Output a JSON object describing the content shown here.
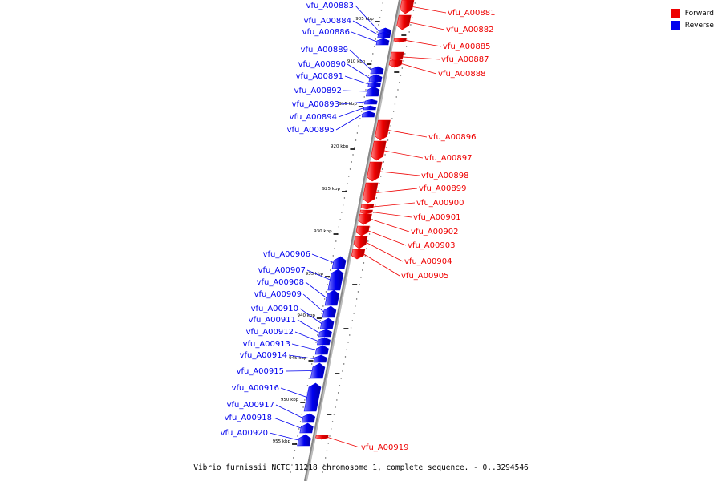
{
  "caption": "Vibrio furnissii NCTC 11218 chromosome 1, complete sequence. - 0..3294546",
  "legend": [
    {
      "label": "Forward",
      "color": "#ee0000"
    },
    {
      "label": "Reverse",
      "color": "#0000ee"
    }
  ],
  "colors": {
    "forward": "#ee0000",
    "reverse": "#0000ee",
    "backbone": "#888888"
  },
  "ticks": [
    "905 kbp",
    "910 kbp",
    "915 kbp",
    "920 kbp",
    "925 kbp",
    "930 kbp",
    "935 kbp",
    "940 kbp",
    "945 kbp",
    "950 kbp",
    "955 kbp"
  ],
  "genes": [
    {
      "name": "vfu_A00881",
      "strand": "forward"
    },
    {
      "name": "vfu_A00882",
      "strand": "forward"
    },
    {
      "name": "vfu_A00883",
      "strand": "reverse"
    },
    {
      "name": "vfu_A00884",
      "strand": "reverse"
    },
    {
      "name": "vfu_A00885",
      "strand": "forward"
    },
    {
      "name": "vfu_A00886",
      "strand": "reverse"
    },
    {
      "name": "vfu_A00887",
      "strand": "forward"
    },
    {
      "name": "vfu_A00888",
      "strand": "forward"
    },
    {
      "name": "vfu_A00889",
      "strand": "reverse"
    },
    {
      "name": "vfu_A00890",
      "strand": "reverse"
    },
    {
      "name": "vfu_A00891",
      "strand": "reverse"
    },
    {
      "name": "vfu_A00892",
      "strand": "reverse"
    },
    {
      "name": "vfu_A00893",
      "strand": "reverse"
    },
    {
      "name": "vfu_A00894",
      "strand": "reverse"
    },
    {
      "name": "vfu_A00895",
      "strand": "reverse"
    },
    {
      "name": "vfu_A00896",
      "strand": "forward"
    },
    {
      "name": "vfu_A00897",
      "strand": "forward"
    },
    {
      "name": "vfu_A00898",
      "strand": "forward"
    },
    {
      "name": "vfu_A00899",
      "strand": "forward"
    },
    {
      "name": "vfu_A00900",
      "strand": "forward"
    },
    {
      "name": "vfu_A00901",
      "strand": "forward"
    },
    {
      "name": "vfu_A00902",
      "strand": "forward"
    },
    {
      "name": "vfu_A00903",
      "strand": "forward"
    },
    {
      "name": "vfu_A00904",
      "strand": "forward"
    },
    {
      "name": "vfu_A00905",
      "strand": "forward"
    },
    {
      "name": "vfu_A00906",
      "strand": "reverse"
    },
    {
      "name": "vfu_A00907",
      "strand": "reverse"
    },
    {
      "name": "vfu_A00908",
      "strand": "reverse"
    },
    {
      "name": "vfu_A00909",
      "strand": "reverse"
    },
    {
      "name": "vfu_A00910",
      "strand": "reverse"
    },
    {
      "name": "vfu_A00911",
      "strand": "reverse"
    },
    {
      "name": "vfu_A00912",
      "strand": "reverse"
    },
    {
      "name": "vfu_A00913",
      "strand": "reverse"
    },
    {
      "name": "vfu_A00914",
      "strand": "reverse"
    },
    {
      "name": "vfu_A00915",
      "strand": "reverse"
    },
    {
      "name": "vfu_A00916",
      "strand": "reverse"
    },
    {
      "name": "vfu_A00917",
      "strand": "reverse"
    },
    {
      "name": "vfu_A00918",
      "strand": "reverse"
    },
    {
      "name": "vfu_A00919",
      "strand": "forward"
    },
    {
      "name": "vfu_A00920",
      "strand": "reverse"
    }
  ]
}
